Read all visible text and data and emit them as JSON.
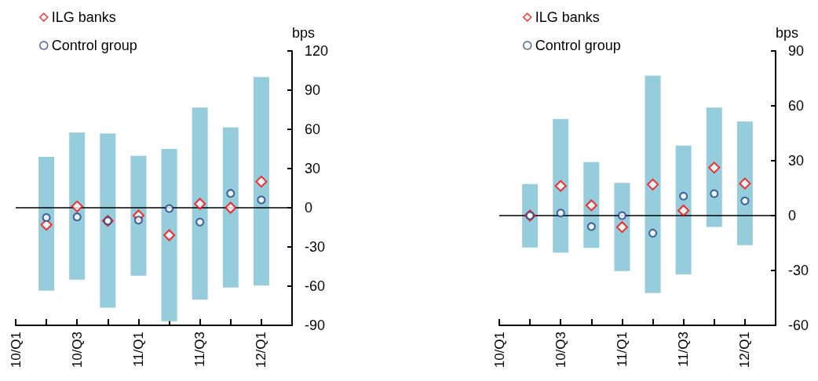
{
  "chart_data": [
    {
      "type": "bar",
      "ylabel": "bps",
      "categories": [
        "10/Q1",
        null,
        "10/Q3",
        null,
        "11/Q1",
        null,
        "11/Q3",
        null,
        "12/Q1",
        null
      ],
      "ylim": [
        -90,
        120
      ],
      "yticks": [
        -90,
        -60,
        -30,
        0,
        30,
        60,
        90,
        120
      ],
      "grid": false,
      "legend": "top left",
      "ref_lines": [
        {
          "axis": "y",
          "value": 0,
          "color": "#000000"
        }
      ],
      "series": [
        {
          "type": "bar",
          "color": "#96cddd",
          "base": [
            null,
            -63.5,
            -55,
            -76.5,
            -52,
            -86.8,
            -70.4,
            -61,
            -59.6,
            null
          ],
          "values": [
            null,
            102.5,
            112.6,
            133.3,
            91.8,
            131.8,
            147.1,
            122.5,
            159.6,
            null
          ]
        },
        {
          "type": "scatter",
          "name": "ILG banks",
          "marker": "diamond",
          "color": "#ff0000",
          "values": [
            null,
            -13,
            1,
            -10,
            -6,
            -21,
            3,
            0,
            20,
            null
          ]
        },
        {
          "type": "scatter",
          "name": "Control group",
          "marker": "circle",
          "color": "#1f3f7f",
          "values": [
            null,
            -7.5,
            -7,
            -10,
            -9.5,
            -0.6,
            -11,
            11,
            6,
            null
          ]
        }
      ]
    },
    {
      "type": "bar",
      "ylabel": "bps",
      "categories": [
        "10/Q1",
        null,
        "10/Q3",
        null,
        "11/Q1",
        null,
        "11/Q3",
        null,
        "12/Q1",
        null
      ],
      "ylim": [
        -60,
        90
      ],
      "yticks": [
        -60,
        -30,
        0,
        30,
        60,
        90
      ],
      "grid": false,
      "legend": "top left",
      "ref_lines": [
        {
          "axis": "y",
          "value": 0,
          "color": "#000000"
        }
      ],
      "series": [
        {
          "type": "bar",
          "color": "#96cddd",
          "base": [
            null,
            -17.5,
            -20.3,
            -17.7,
            -30.3,
            -42.3,
            -32.1,
            -6.2,
            -16.2,
            null
          ],
          "values": [
            null,
            34.8,
            73.1,
            46.9,
            48.2,
            118.8,
            70.4,
            65.2,
            67.6,
            null
          ]
        },
        {
          "type": "scatter",
          "name": "ILG banks",
          "marker": "diamond",
          "color": "#ff0000",
          "values": [
            null,
            0,
            16.2,
            5.6,
            -6.3,
            17,
            2.8,
            26.2,
            17.5,
            null
          ]
        },
        {
          "type": "scatter",
          "name": "Control group",
          "marker": "circle",
          "color": "#1f3f7f",
          "values": [
            null,
            0,
            1.4,
            -6,
            0,
            -9.6,
            10.6,
            12,
            8,
            null
          ]
        }
      ]
    }
  ]
}
